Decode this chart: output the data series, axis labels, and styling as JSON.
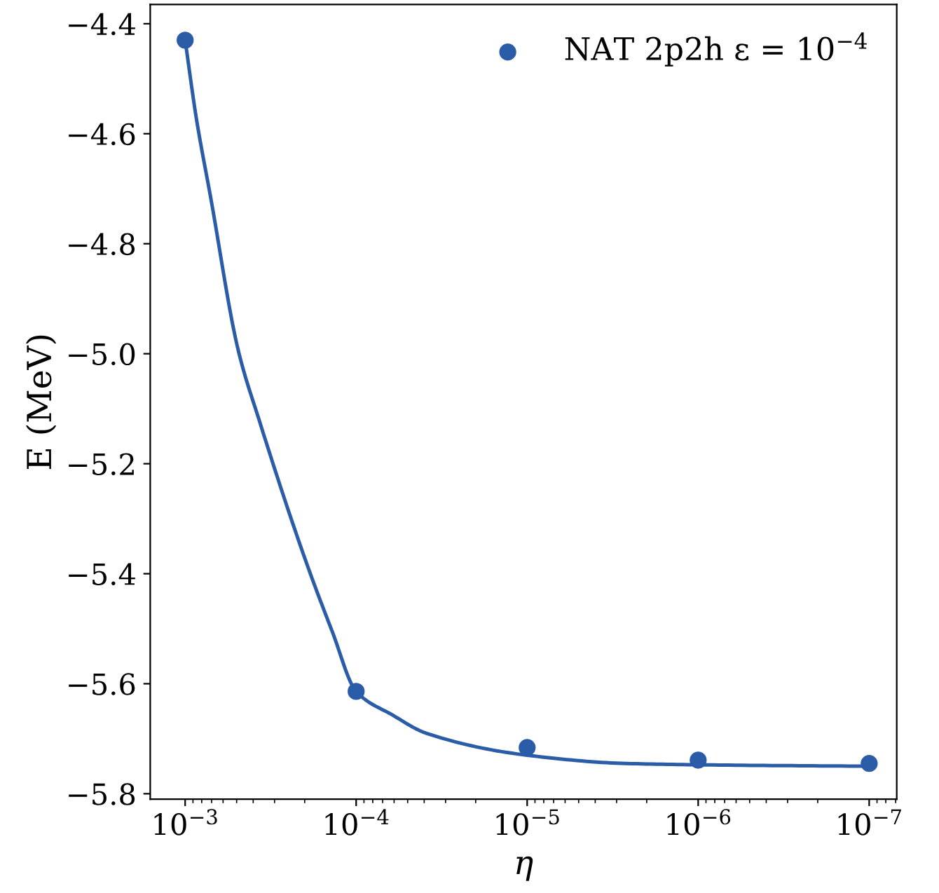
{
  "chart_data": {
    "type": "scatter",
    "xlabel": "η",
    "ylabel": "E (MeV)",
    "log": "x",
    "xlim": [
      0.0016,
      6.9e-08
    ],
    "ylim": [
      -5.81,
      -4.365
    ],
    "xticks": [
      {
        "value": 0.001,
        "label": "10$^{−3}$"
      },
      {
        "value": 0.0001,
        "label": "10$^{−4}$"
      },
      {
        "value": 1e-05,
        "label": "10$^{−5}$"
      },
      {
        "value": 1e-06,
        "label": "10$^{−6}$"
      },
      {
        "value": 1e-07,
        "label": "10$^{−7}$"
      }
    ],
    "yticks": [
      {
        "value": -5.8,
        "label": "−5.8"
      },
      {
        "value": -5.6,
        "label": "−5.6"
      },
      {
        "value": -5.4,
        "label": "−5.4"
      },
      {
        "value": -5.2,
        "label": "−5.2"
      },
      {
        "value": -5.0,
        "label": "−5.0"
      },
      {
        "value": -4.8,
        "label": "−4.8"
      },
      {
        "value": -4.6,
        "label": "−4.6"
      },
      {
        "value": -4.4,
        "label": "−4.4"
      }
    ],
    "grid": false,
    "legend": "top right",
    "series": [
      {
        "name": "NAT 2p2h ε = 10$^{−4}$",
        "marker": "circle",
        "color": "#2a5ca8",
        "x": [
          0.001,
          0.0001,
          1e-05,
          1e-06,
          1e-07
        ],
        "values": [
          -4.43,
          -5.614,
          -5.716,
          -5.739,
          -5.745
        ]
      },
      {
        "type": "line",
        "marker": "none",
        "line_style": "solid",
        "color": "#2a5ca8",
        "x": [
          0.001,
          0.000859,
          0.000711,
          0.000489,
          0.000368,
          0.000197,
          0.000138,
          0.0001,
          6.12e-05,
          3.89e-05,
          1e-05,
          2.63e-06,
          6.6e-07,
          1e-07
        ],
        "values": [
          -4.43,
          -4.573,
          -4.714,
          -4.994,
          -5.122,
          -5.377,
          -5.505,
          -5.614,
          -5.657,
          -5.69,
          -5.73,
          -5.745,
          -5.748,
          -5.75
        ]
      }
    ]
  }
}
